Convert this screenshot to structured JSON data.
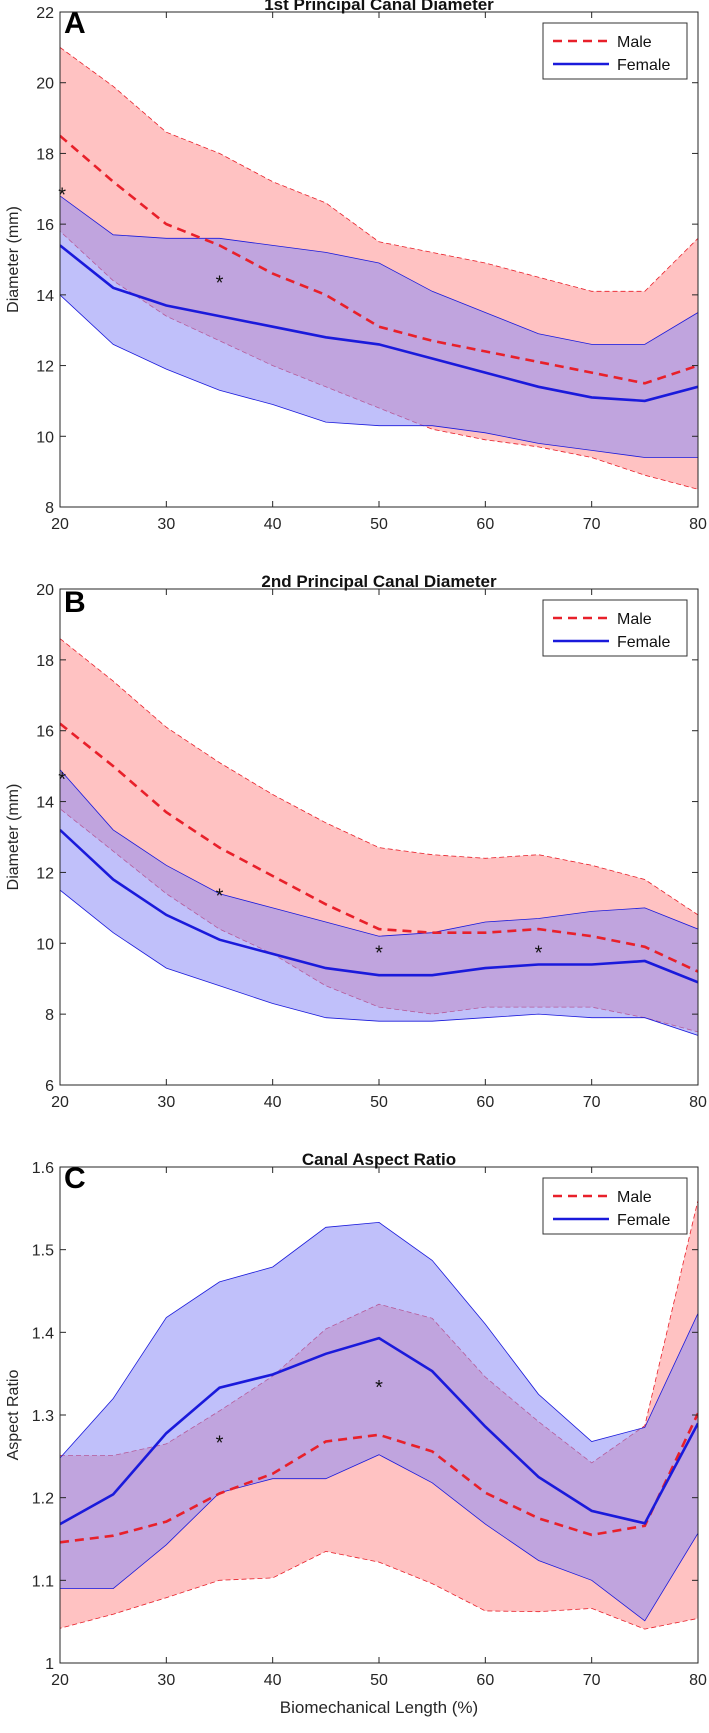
{
  "colors": {
    "male": "#e8202a",
    "female": "#1a1adb",
    "male_band": "#ff9a9a",
    "female_band": "#8c8cf5",
    "axis": "#262626"
  },
  "shared": {
    "x_ticks": [
      "20",
      "30",
      "40",
      "50",
      "60",
      "70",
      "80"
    ],
    "xlabel": "Biomechanical Length (%)"
  },
  "chart_data": [
    {
      "panel": "A",
      "type": "line",
      "title": "1st Principal Canal Diameter",
      "xlabel": "",
      "ylabel": "Diameter (mm)",
      "xlim": [
        20,
        80
      ],
      "ylim": [
        8,
        22
      ],
      "y_ticks": [
        "8",
        "10",
        "12",
        "14",
        "16",
        "18",
        "20",
        "22"
      ],
      "legend": {
        "position": "top-right",
        "entries": [
          "Male",
          "Female"
        ]
      },
      "x": [
        20,
        25,
        30,
        35,
        40,
        45,
        50,
        55,
        60,
        65,
        70,
        75,
        80
      ],
      "series": [
        {
          "name": "Male",
          "style": "dashed",
          "mean": [
            18.5,
            17.2,
            16.0,
            15.4,
            14.6,
            14.0,
            13.1,
            12.7,
            12.4,
            12.1,
            11.8,
            11.5,
            12.0
          ],
          "upper": [
            21.0,
            19.9,
            18.6,
            18.0,
            17.2,
            16.6,
            15.5,
            15.2,
            14.9,
            14.5,
            14.1,
            14.1,
            15.6
          ],
          "lower": [
            15.8,
            14.4,
            13.4,
            12.7,
            12.0,
            11.4,
            10.8,
            10.2,
            9.9,
            9.7,
            9.4,
            8.9,
            8.5
          ]
        },
        {
          "name": "Female",
          "style": "solid",
          "mean": [
            15.4,
            14.2,
            13.7,
            13.4,
            13.1,
            12.8,
            12.6,
            12.2,
            11.8,
            11.4,
            11.1,
            11.0,
            11.4
          ],
          "upper": [
            16.8,
            15.7,
            15.6,
            15.6,
            15.4,
            15.2,
            14.9,
            14.1,
            13.5,
            12.9,
            12.6,
            12.6,
            13.5
          ],
          "lower": [
            14.0,
            12.6,
            11.9,
            11.3,
            10.9,
            10.4,
            10.3,
            10.3,
            10.1,
            9.8,
            9.6,
            9.4,
            9.4
          ]
        }
      ],
      "significance_markers": [
        {
          "x": 20.2,
          "y": 16.9,
          "label": "*"
        },
        {
          "x": 35,
          "y": 14.4,
          "label": "*"
        }
      ]
    },
    {
      "panel": "B",
      "type": "line",
      "title": "2nd Principal Canal Diameter",
      "xlabel": "",
      "ylabel": "Diameter (mm)",
      "xlim": [
        20,
        80
      ],
      "ylim": [
        6,
        20
      ],
      "y_ticks": [
        "6",
        "8",
        "10",
        "12",
        "14",
        "16",
        "18",
        "20"
      ],
      "legend": {
        "position": "top-right",
        "entries": [
          "Male",
          "Female"
        ]
      },
      "x": [
        20,
        25,
        30,
        35,
        40,
        45,
        50,
        55,
        60,
        65,
        70,
        75,
        80
      ],
      "series": [
        {
          "name": "Male",
          "style": "dashed",
          "mean": [
            16.2,
            15.0,
            13.7,
            12.7,
            11.9,
            11.1,
            10.4,
            10.3,
            10.3,
            10.4,
            10.2,
            9.9,
            9.2
          ],
          "upper": [
            18.6,
            17.4,
            16.1,
            15.1,
            14.2,
            13.4,
            12.7,
            12.5,
            12.4,
            12.5,
            12.2,
            11.8,
            10.8
          ],
          "lower": [
            13.8,
            12.6,
            11.4,
            10.4,
            9.7,
            8.8,
            8.2,
            8.0,
            8.2,
            8.2,
            8.2,
            7.9,
            7.5
          ]
        },
        {
          "name": "Female",
          "style": "solid",
          "mean": [
            13.2,
            11.8,
            10.8,
            10.1,
            9.7,
            9.3,
            9.1,
            9.1,
            9.3,
            9.4,
            9.4,
            9.5,
            8.9
          ],
          "upper": [
            14.9,
            13.2,
            12.2,
            11.4,
            11.0,
            10.6,
            10.2,
            10.3,
            10.6,
            10.7,
            10.9,
            11.0,
            10.4
          ],
          "lower": [
            11.5,
            10.3,
            9.3,
            8.8,
            8.3,
            7.9,
            7.8,
            7.8,
            7.9,
            8.0,
            7.9,
            7.9,
            7.4
          ]
        }
      ],
      "significance_markers": [
        {
          "x": 20.2,
          "y": 14.7,
          "label": "*"
        },
        {
          "x": 35,
          "y": 11.4,
          "label": "*"
        },
        {
          "x": 50,
          "y": 9.8,
          "label": "*"
        },
        {
          "x": 65,
          "y": 9.8,
          "label": "*"
        }
      ]
    },
    {
      "panel": "C",
      "type": "line",
      "title": "Canal Aspect Ratio",
      "xlabel": "Biomechanical Length (%)",
      "ylabel": "Aspect Ratio",
      "xlim": [
        20,
        80
      ],
      "ylim": [
        1,
        1.6
      ],
      "y_ticks": [
        "1",
        "1.1",
        "1.2",
        "1.3",
        "1.4",
        "1.5",
        "1.6"
      ],
      "legend": {
        "position": "top-right",
        "entries": [
          "Male",
          "Female"
        ]
      },
      "x": [
        20,
        25,
        30,
        35,
        40,
        45,
        50,
        55,
        60,
        65,
        70,
        75,
        80
      ],
      "series": [
        {
          "name": "Male",
          "style": "dashed",
          "mean": [
            1.146,
            1.154,
            1.171,
            1.205,
            1.229,
            1.268,
            1.276,
            1.256,
            1.206,
            1.175,
            1.155,
            1.166,
            1.302
          ],
          "upper": [
            1.251,
            1.251,
            1.265,
            1.305,
            1.347,
            1.404,
            1.434,
            1.417,
            1.346,
            1.292,
            1.242,
            1.287,
            1.56
          ],
          "lower": [
            1.042,
            1.059,
            1.079,
            1.1,
            1.103,
            1.135,
            1.122,
            1.096,
            1.063,
            1.062,
            1.066,
            1.041,
            1.054
          ]
        },
        {
          "name": "Female",
          "style": "solid",
          "mean": [
            1.168,
            1.204,
            1.278,
            1.333,
            1.349,
            1.374,
            1.393,
            1.353,
            1.286,
            1.225,
            1.184,
            1.169,
            1.29
          ],
          "upper": [
            1.248,
            1.32,
            1.418,
            1.461,
            1.479,
            1.527,
            1.533,
            1.487,
            1.41,
            1.325,
            1.268,
            1.285,
            1.423
          ],
          "lower": [
            1.09,
            1.09,
            1.143,
            1.206,
            1.223,
            1.223,
            1.252,
            1.218,
            1.168,
            1.124,
            1.1,
            1.051,
            1.157
          ]
        }
      ],
      "significance_markers": [
        {
          "x": 35,
          "y": 1.269,
          "label": "*"
        },
        {
          "x": 50,
          "y": 1.336,
          "label": "*"
        }
      ]
    }
  ]
}
